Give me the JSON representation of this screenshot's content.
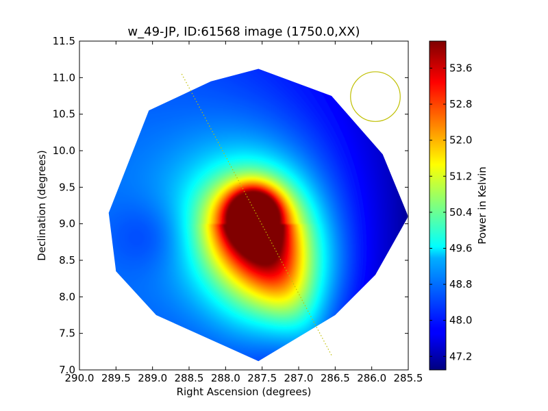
{
  "chart_data": {
    "type": "heatmap",
    "title": "w_49-JP, ID:61568 image (1750.0,XX)",
    "xlabel": "Right Ascension (degrees)",
    "ylabel": "Declination (degrees)",
    "xlim": [
      290.0,
      285.5
    ],
    "ylim": [
      7.0,
      11.5
    ],
    "x_ticks": [
      "290.0",
      "289.5",
      "289.0",
      "288.5",
      "288.0",
      "287.5",
      "287.0",
      "286.5",
      "286.0",
      "285.5"
    ],
    "y_ticks": [
      "7.0",
      "7.5",
      "8.0",
      "8.5",
      "9.0",
      "9.5",
      "10.0",
      "10.5",
      "11.0",
      "11.5"
    ],
    "colorbar": {
      "label": "Power in Kelvin",
      "range": [
        46.9,
        54.2
      ],
      "ticks": [
        "47.2",
        "48.0",
        "48.8",
        "49.6",
        "50.4",
        "51.2",
        "52.0",
        "52.8",
        "53.6"
      ],
      "colormap": "jet"
    },
    "footprint_octagon_radec": [
      [
        287.55,
        11.12
      ],
      [
        286.55,
        10.75
      ],
      [
        285.85,
        9.95
      ],
      [
        285.5,
        9.1
      ],
      [
        285.95,
        8.3
      ],
      [
        286.5,
        7.75
      ],
      [
        287.55,
        7.12
      ],
      [
        288.95,
        7.75
      ],
      [
        289.5,
        8.35
      ],
      [
        289.6,
        9.15
      ],
      [
        289.05,
        10.55
      ],
      [
        288.2,
        10.95
      ]
    ],
    "sources": [
      {
        "ra": 287.62,
        "dec": 9.14,
        "value": 54.0,
        "sigma_deg": 0.22
      },
      {
        "ra": 287.65,
        "dec": 9.0,
        "value": 52.2,
        "sigma_deg": 0.45
      },
      {
        "ra": 287.35,
        "dec": 8.3,
        "value": 50.8,
        "sigma_deg": 0.55
      },
      {
        "ra": 287.7,
        "dec": 9.1,
        "value": 50.0,
        "sigma_deg": 0.9
      }
    ],
    "background_value": 48.4,
    "gradient_east_west": {
      "east_value": 48.6,
      "west_value": 46.9
    },
    "scan_line_radec": [
      [
        288.6,
        11.05
      ],
      [
        286.55,
        7.2
      ]
    ],
    "circle_marker": {
      "ra": 285.95,
      "dec": 10.74,
      "radius_deg": 0.34
    },
    "colors": {
      "scan_line": "#bfbf00",
      "circle": "#bfbf00"
    }
  }
}
